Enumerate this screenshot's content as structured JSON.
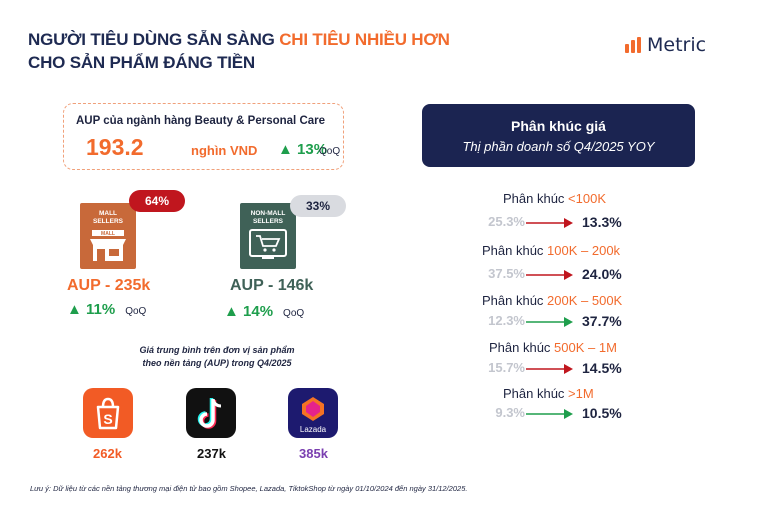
{
  "title": {
    "line1_prefix": "NGƯỜI TIÊU DÙNG SẴN SÀNG ",
    "line1_highlight": "CHI TIÊU NHIỀU HƠN",
    "line2": "CHO SẢN PHẨM ĐÁNG TIỀN"
  },
  "logo": {
    "text": "Metric"
  },
  "aup": {
    "header": "AUP của ngành hàng Beauty & Personal Care",
    "value": "193.2",
    "unit": "nghìn VND",
    "growth": "▲ 13%",
    "period": "QoQ"
  },
  "mall": {
    "icon_label_1": "MALL",
    "icon_label_2": "SELLERS",
    "sign_label": "MALL",
    "share": "64%",
    "aup": "AUP - 235k",
    "growth": "▲ 11%",
    "period": "QoQ"
  },
  "nonmall": {
    "icon_label_1": "NON-MALL",
    "icon_label_2": "SELLERS",
    "share": "33%",
    "aup": "AUP - 146k",
    "growth": "▲ 14%",
    "period": "QoQ"
  },
  "caption": {
    "line1": "Giá trung bình trên đơn vị sản phẩm",
    "line2": "theo nền tảng (AUP) trong Q4/2025"
  },
  "platforms": [
    {
      "name": "Shopee",
      "value": "262k",
      "color": "#f25b25"
    },
    {
      "name": "TikTok",
      "value": "237k",
      "color": "#111111"
    },
    {
      "name": "Lazada",
      "value": "385k",
      "color": "#7a3fb0",
      "icon_text": "Lazada"
    }
  ],
  "panel": {
    "heading": "Phân khúc giá",
    "subheading": "Thị phần doanh số Q4/2025 YOY"
  },
  "segments": [
    {
      "prefix": "Phân khúc ",
      "range": "<100K",
      "old": "25.3%",
      "new": "13.3%",
      "trend": "down"
    },
    {
      "prefix": "Phân khúc ",
      "range": "100K – 200k",
      "old": "37.5%",
      "new": "24.0%",
      "trend": "down"
    },
    {
      "prefix": "Phân khúc ",
      "range": "200K – 500K",
      "old": "12.3%",
      "new": "37.7%",
      "trend": "up"
    },
    {
      "prefix": "Phân khúc ",
      "range": "500K – 1M",
      "old": "15.7%",
      "new": "14.5%",
      "trend": "down"
    },
    {
      "prefix": "Phân khúc ",
      "range": ">1M",
      "old": "9.3%",
      "new": "10.5%",
      "trend": "up"
    }
  ],
  "colors": {
    "accent": "#f26b2d",
    "navy": "#1b2451",
    "up": "#1e9e4c",
    "down": "#c0161e"
  },
  "footnote": "Lưu ý: Dữ liệu từ các nền tảng thương mại điện tử bao gồm Shopee, Lazada, TiktokShop từ ngày 01/10/2024 đến ngày 31/12/2025."
}
